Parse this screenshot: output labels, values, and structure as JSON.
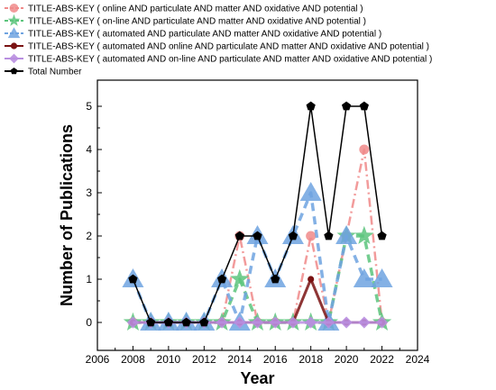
{
  "chart_data": {
    "type": "line",
    "xlabel": "Year",
    "ylabel": "Number of Publications",
    "xlim": [
      2006,
      2024
    ],
    "ylim": [
      0,
      5
    ],
    "xticks": [
      "2006",
      "2008",
      "2010",
      "2012",
      "2014",
      "2016",
      "2018",
      "2020",
      "2022",
      "2024"
    ],
    "yticks": [
      "0",
      "1",
      "2",
      "3",
      "4",
      "5"
    ],
    "grid": false,
    "legend_position": "top-left",
    "x": [
      2008,
      2009,
      2010,
      2011,
      2012,
      2013,
      2014,
      2015,
      2016,
      2017,
      2018,
      2019,
      2020,
      2021,
      2022
    ],
    "series": [
      {
        "name": "TITLE-ABS-KEY ( online  AND  particulate  AND  matter  AND  oxidative  AND  potential )",
        "color": "#f08a8a",
        "marker": "circle",
        "dash": "dashdot",
        "values": [
          0,
          0,
          0,
          0,
          0,
          0,
          2,
          0,
          0,
          0,
          2,
          0,
          2,
          4,
          0
        ]
      },
      {
        "name": "TITLE-ABS-KEY ( on-line  AND  particulate  AND  matter  AND  oxidative  AND  potential )",
        "color": "#5cc47c",
        "marker": "star",
        "dash": "dashed",
        "values": [
          0,
          0,
          0,
          0,
          0,
          0,
          1,
          0,
          0,
          0,
          0,
          0,
          2,
          2,
          0
        ]
      },
      {
        "name": "TITLE-ABS-KEY ( automated  AND  particulate  AND  matter  AND  oxidative  AND  potential )",
        "color": "#6fa3e0",
        "marker": "triangle",
        "dash": "dashed",
        "values": [
          1,
          0,
          0,
          0,
          0,
          1,
          0,
          2,
          1,
          2,
          3,
          0,
          2,
          1,
          1
        ]
      },
      {
        "name": "TITLE-ABS-KEY ( automated  AND  online  AND  particulate  AND  matter  AND  oxidative  AND  potential )",
        "color": "#7a1212",
        "marker": "dot",
        "dash": "solid",
        "values": [
          0,
          0,
          0,
          0,
          0,
          0,
          0,
          0,
          0,
          0,
          1,
          0,
          0,
          0,
          0
        ]
      },
      {
        "name": "TITLE-ABS-KEY ( automated AND on-line AND particulate AND matter AND oxidative AND potential )",
        "color": "#b98ee0",
        "marker": "diamond",
        "dash": "solid",
        "values": [
          0,
          0,
          0,
          0,
          0,
          0,
          0,
          0,
          0,
          0,
          0,
          0,
          0,
          0,
          0
        ]
      },
      {
        "name": "Total Number",
        "color": "#000000",
        "marker": "pentagon",
        "dash": "solid",
        "values": [
          1,
          0,
          0,
          0,
          0,
          1,
          2,
          2,
          1,
          2,
          5,
          2,
          5,
          5,
          2
        ]
      }
    ]
  }
}
